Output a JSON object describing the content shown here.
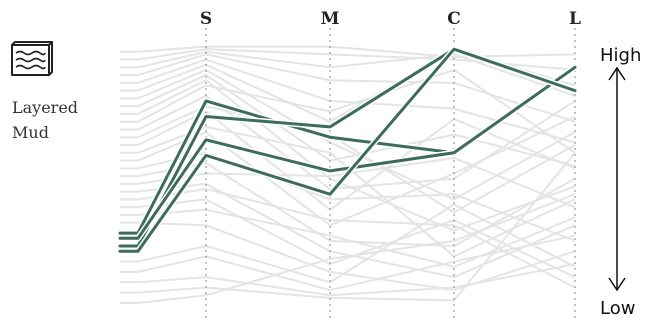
{
  "chart_data": {
    "type": "parallel-coordinates",
    "category": {
      "label_line1": "Layered",
      "label_line2": "Mud",
      "icon": "layered-mud-icon"
    },
    "axes": [
      "S",
      "M",
      "C",
      "L"
    ],
    "scale": {
      "high_label": "High",
      "low_label": "Low",
      "range": [
        0,
        1
      ],
      "direction_icon": "double-arrow-icon"
    },
    "start_point": "left-edge-offset",
    "colors": {
      "highlight": "#3d6b5c",
      "background_lines": "#e4e4e4",
      "axis": "#9a9a9a"
    },
    "highlighted_series": [
      {
        "start": 0.27,
        "values": [
          0.78,
          0.64,
          0.58,
          0.91
        ]
      },
      {
        "start": 0.22,
        "values": [
          0.72,
          0.68,
          0.98,
          0.82
        ]
      },
      {
        "start": 0.25,
        "values": [
          0.63,
          0.51,
          0.58,
          0.91
        ]
      },
      {
        "start": 0.2,
        "values": [
          0.57,
          0.42,
          0.98,
          0.82
        ]
      }
    ],
    "background_series": [
      {
        "start": 0.97,
        "values": [
          0.99,
          0.99,
          0.95,
          0.96
        ]
      },
      {
        "start": 0.94,
        "values": [
          0.98,
          0.96,
          0.94,
          0.9
        ]
      },
      {
        "start": 0.91,
        "values": [
          0.97,
          0.91,
          0.96,
          0.8
        ]
      },
      {
        "start": 0.88,
        "values": [
          0.96,
          0.86,
          0.85,
          0.7
        ]
      },
      {
        "start": 0.85,
        "values": [
          0.94,
          0.78,
          0.75,
          0.62
        ]
      },
      {
        "start": 0.82,
        "values": [
          0.92,
          0.7,
          0.98,
          0.84
        ]
      },
      {
        "start": 0.79,
        "values": [
          0.9,
          0.62,
          0.4,
          0.66
        ]
      },
      {
        "start": 0.76,
        "values": [
          0.88,
          0.55,
          0.65,
          0.53
        ]
      },
      {
        "start": 0.73,
        "values": [
          0.86,
          0.48,
          0.28,
          0.45
        ]
      },
      {
        "start": 0.7,
        "values": [
          0.84,
          0.74,
          0.9,
          0.58
        ]
      },
      {
        "start": 0.67,
        "values": [
          0.8,
          0.44,
          0.48,
          0.78
        ]
      },
      {
        "start": 0.64,
        "values": [
          0.76,
          0.65,
          0.35,
          0.61
        ]
      },
      {
        "start": 0.61,
        "values": [
          0.74,
          0.36,
          0.71,
          0.52
        ]
      },
      {
        "start": 0.58,
        "values": [
          0.68,
          0.58,
          0.18,
          0.4
        ]
      },
      {
        "start": 0.55,
        "values": [
          0.66,
          0.3,
          0.5,
          0.72
        ]
      },
      {
        "start": 0.52,
        "values": [
          0.58,
          0.4,
          0.42,
          0.24
        ]
      },
      {
        "start": 0.49,
        "values": [
          0.54,
          0.24,
          0.22,
          0.48
        ]
      },
      {
        "start": 0.46,
        "values": [
          0.5,
          0.49,
          0.56,
          0.37
        ]
      },
      {
        "start": 0.43,
        "values": [
          0.46,
          0.2,
          0.1,
          0.3
        ]
      },
      {
        "start": 0.4,
        "values": [
          0.44,
          0.32,
          0.3,
          0.06
        ]
      },
      {
        "start": 0.37,
        "values": [
          0.4,
          0.15,
          0.32,
          0.1
        ]
      },
      {
        "start": 0.34,
        "values": [
          0.36,
          0.26,
          0.14,
          0.33
        ]
      },
      {
        "start": 0.31,
        "values": [
          0.3,
          0.12,
          0.05,
          0.2
        ]
      },
      {
        "start": 0.16,
        "values": [
          0.22,
          0.08,
          0.38,
          0.14
        ]
      },
      {
        "start": 0.12,
        "values": [
          0.18,
          0.05,
          0.16,
          0.26
        ]
      },
      {
        "start": 0.08,
        "values": [
          0.1,
          0.03,
          0.06,
          0.15
        ]
      },
      {
        "start": 0.04,
        "values": [
          0.06,
          0.02,
          0.01,
          0.58
        ]
      },
      {
        "start": 0.0,
        "values": [
          0.03,
          0.17,
          0.24,
          0.42
        ]
      }
    ]
  }
}
